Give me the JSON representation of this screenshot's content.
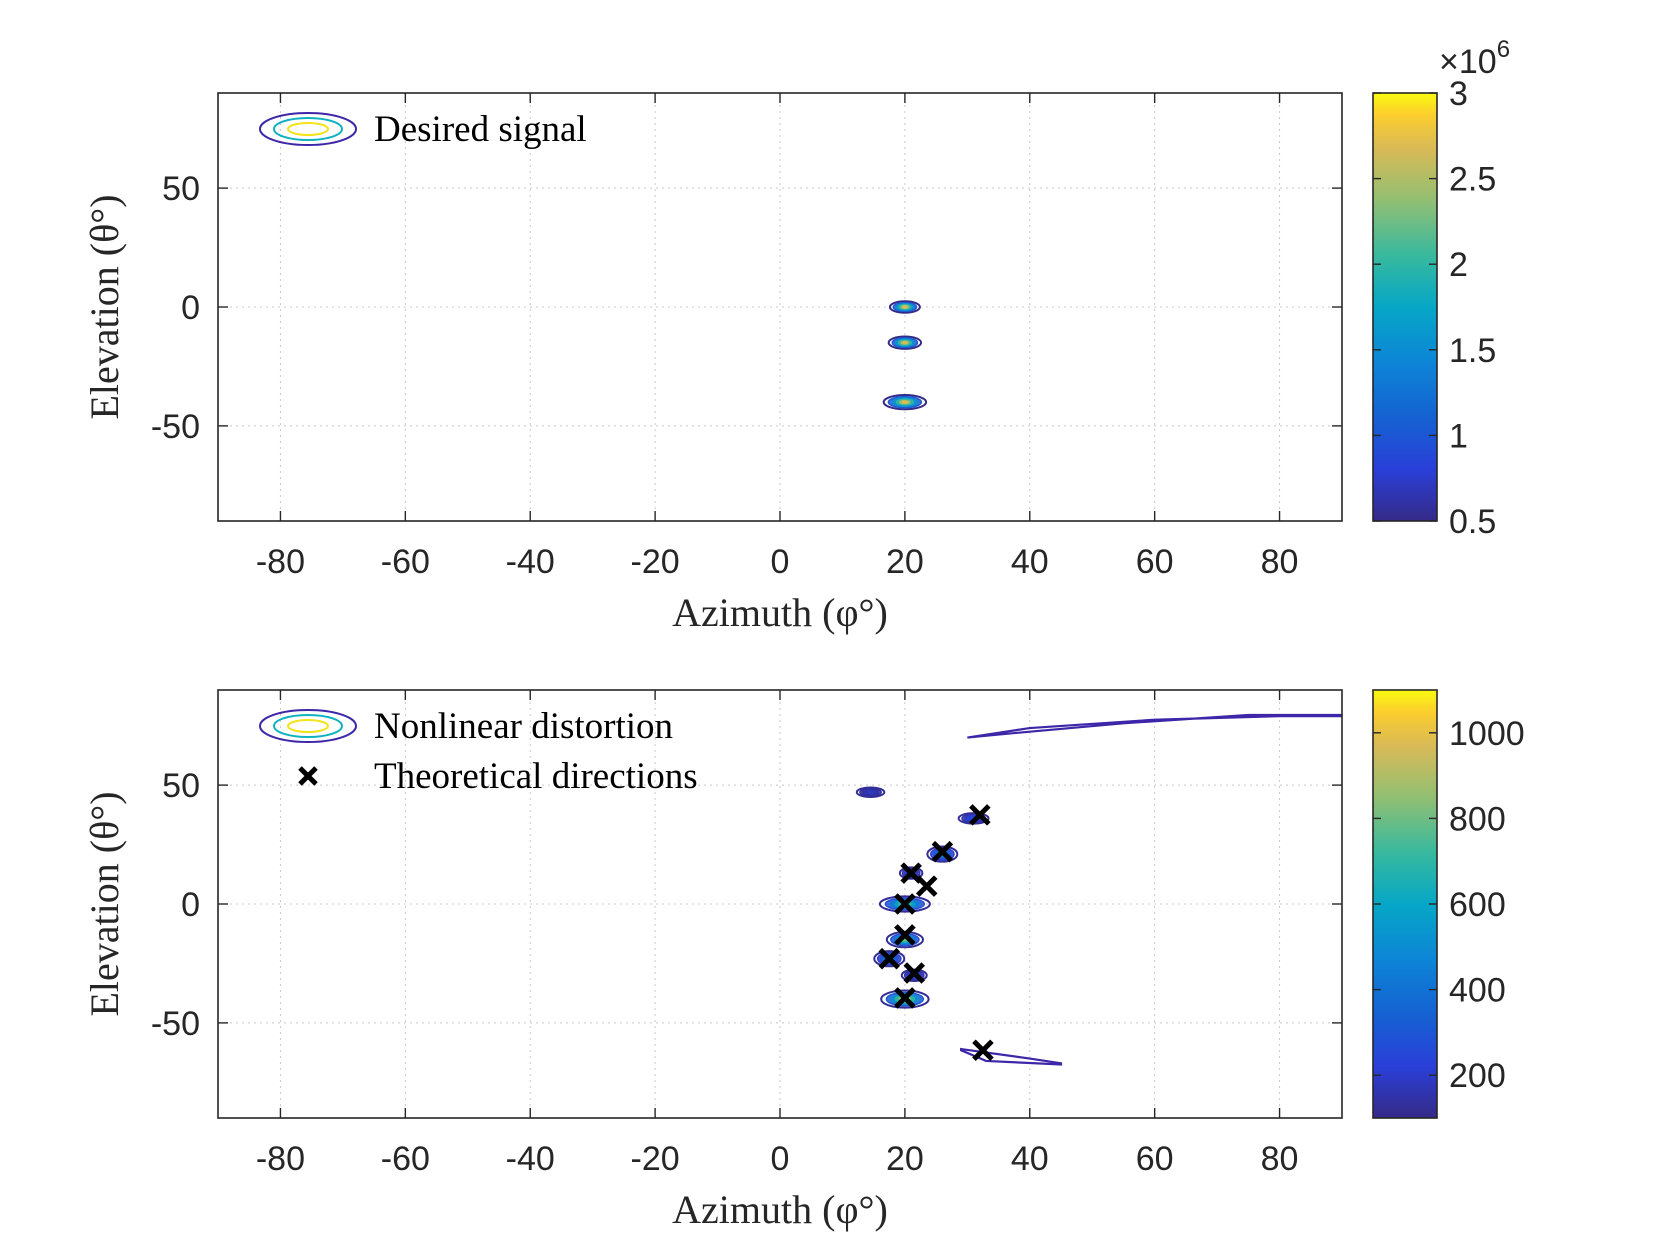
{
  "chart_data": [
    {
      "type": "contour",
      "xlabel": "Azimuth (φ°)",
      "ylabel": "Elevation (θ°)",
      "xlim": [
        -90,
        90
      ],
      "ylim": [
        -90,
        90
      ],
      "xticks": [
        -80,
        -60,
        -40,
        -20,
        0,
        20,
        40,
        60,
        80
      ],
      "yticks": [
        -50,
        0,
        50
      ],
      "xtick_labels": [
        "-80",
        "-60",
        "-40",
        "-20",
        "0",
        "20",
        "40",
        "60",
        "80"
      ],
      "ytick_labels": [
        "-50",
        "0",
        "50"
      ],
      "grid": true,
      "legend": {
        "position": "top-left",
        "entries": [
          "Desired signal"
        ]
      },
      "colorbar": {
        "range": [
          0.5,
          3
        ],
        "ticks": [
          0.5,
          1,
          1.5,
          2,
          2.5,
          3
        ],
        "tick_labels": [
          "0.5",
          "1",
          "1.5",
          "2",
          "2.5",
          "3"
        ],
        "multiplier": "×10",
        "multiplier_exp": "6"
      },
      "blobs": [
        {
          "az": 20,
          "el": 0,
          "rx": 2.4,
          "ry": 2.4,
          "peak": 1.0
        },
        {
          "az": 20,
          "el": -15,
          "rx": 2.6,
          "ry": 2.6,
          "peak": 1.0
        },
        {
          "az": 20,
          "el": -40,
          "rx": 3.4,
          "ry": 3.0,
          "peak": 1.0
        }
      ],
      "markers": []
    },
    {
      "type": "contour",
      "xlabel": "Azimuth (φ°)",
      "ylabel": "Elevation (θ°)",
      "xlim": [
        -90,
        90
      ],
      "ylim": [
        -90,
        90
      ],
      "xticks": [
        -80,
        -60,
        -40,
        -20,
        0,
        20,
        40,
        60,
        80
      ],
      "yticks": [
        -50,
        0,
        50
      ],
      "xtick_labels": [
        "-80",
        "-60",
        "-40",
        "-20",
        "0",
        "20",
        "40",
        "60",
        "80"
      ],
      "ytick_labels": [
        "-50",
        "0",
        "50"
      ],
      "grid": true,
      "legend": {
        "position": "top-left",
        "entries": [
          "Nonlinear distortion",
          "Theoretical directions"
        ]
      },
      "colorbar": {
        "range": [
          100,
          1100
        ],
        "ticks": [
          200,
          400,
          600,
          800,
          1000
        ],
        "tick_labels": [
          "200",
          "400",
          "600",
          "800",
          "1000"
        ],
        "multiplier": "",
        "multiplier_exp": ""
      },
      "blobs": [
        {
          "az": 20,
          "el": 0,
          "rx": 4.0,
          "ry": 3.2,
          "peak": 0.8
        },
        {
          "az": 20,
          "el": -15,
          "rx": 2.9,
          "ry": 3.2,
          "peak": 0.8
        },
        {
          "az": 17.5,
          "el": -23,
          "rx": 2.4,
          "ry": 3.2,
          "peak": 0.45
        },
        {
          "az": 21.5,
          "el": -30,
          "rx": 2.0,
          "ry": 2.4,
          "peak": 0.2
        },
        {
          "az": 20,
          "el": -40,
          "rx": 3.8,
          "ry": 3.6,
          "peak": 1.0
        },
        {
          "az": 26,
          "el": 21,
          "rx": 2.4,
          "ry": 3.2,
          "peak": 0.5
        },
        {
          "az": 31,
          "el": 36,
          "rx": 2.4,
          "ry": 2.2,
          "peak": 0.2
        },
        {
          "az": 21,
          "el": 13,
          "rx": 1.8,
          "ry": 2.4,
          "peak": 0.2
        },
        {
          "az": 14.5,
          "el": 47,
          "rx": 2.2,
          "ry": 2.0,
          "peak": 0.1
        }
      ],
      "markers": [
        {
          "az": 32,
          "el": 37.5
        },
        {
          "az": 26,
          "el": 22
        },
        {
          "az": 21,
          "el": 13
        },
        {
          "az": 23.5,
          "el": 7.5
        },
        {
          "az": 20,
          "el": 0
        },
        {
          "az": 20,
          "el": -13
        },
        {
          "az": 17.5,
          "el": -23
        },
        {
          "az": 21.5,
          "el": -29
        },
        {
          "az": 20,
          "el": -39.5
        },
        {
          "az": 32.5,
          "el": -61.5
        }
      ],
      "streaks": [
        {
          "points": [
            [
              30,
              70
            ],
            [
              40,
              74
            ],
            [
              60,
              77.5
            ],
            [
              80,
              79
            ],
            [
              90,
              79
            ]
          ],
          "lower": [
            [
              90,
              79.5
            ],
            [
              75,
              79.5
            ],
            [
              55,
              76
            ],
            [
              38,
              72
            ],
            [
              30,
              70
            ]
          ],
          "color": "#3d26a8"
        },
        {
          "points": [
            [
              29,
              -61
            ],
            [
              40,
              -65
            ],
            [
              45,
              -67
            ]
          ],
          "lower": [
            [
              45,
              -67.5
            ],
            [
              33,
              -66
            ],
            [
              29,
              -61.5
            ]
          ],
          "color": "#3d26a8"
        }
      ]
    }
  ]
}
